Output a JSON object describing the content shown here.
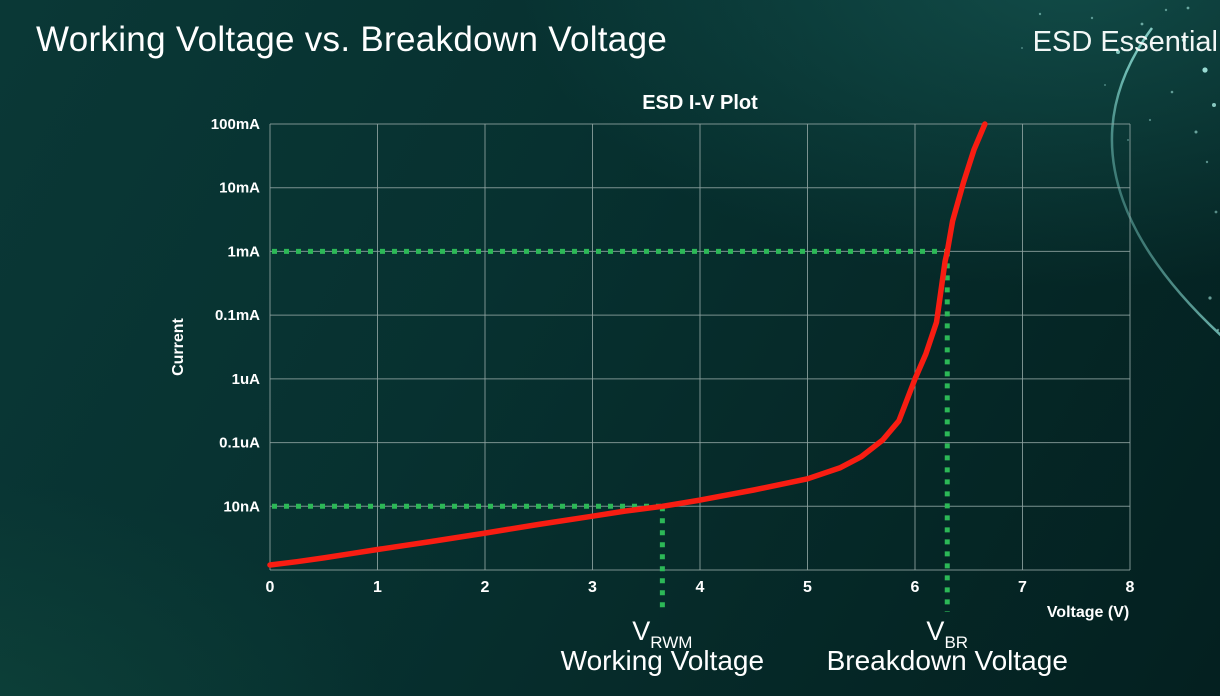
{
  "slide": {
    "title": "Working Voltage vs. Breakdown Voltage",
    "brand": "ESD Essential"
  },
  "colors": {
    "curve_red": "#f81d12",
    "marker_green": "#2cb857",
    "grid_gray": "#8fa3a1",
    "text_white": "#ffffff"
  },
  "chart_data": {
    "type": "line",
    "title": "ESD I-V Plot",
    "xlabel": "Voltage (V)",
    "ylabel": "Current",
    "xlim": [
      0,
      8
    ],
    "x_ticks": [
      0,
      1,
      2,
      3,
      4,
      5,
      6,
      7,
      8
    ],
    "y_scale": "log",
    "grid": true,
    "y_gridlines": [
      {
        "label": "100mA",
        "value": 0.1
      },
      {
        "label": "10mA",
        "value": 0.01
      },
      {
        "label": "1mA",
        "value": 0.001
      },
      {
        "label": "0.1mA",
        "value": 0.0001
      },
      {
        "label": "1uA",
        "value": 1e-06
      },
      {
        "label": "0.1uA",
        "value": 1e-07
      },
      {
        "label": "10nA",
        "value": 1e-08
      },
      {
        "label": "",
        "value": 1e-09
      }
    ],
    "series": [
      {
        "name": "ESD diode I-V curve",
        "color": "#f81d12",
        "points": [
          [
            0,
            1.2e-09
          ],
          [
            0.25,
            1.35e-09
          ],
          [
            0.5,
            1.55e-09
          ],
          [
            0.75,
            1.8e-09
          ],
          [
            1,
            2.1e-09
          ],
          [
            1.5,
            2.8e-09
          ],
          [
            2,
            3.8e-09
          ],
          [
            2.5,
            5.2e-09
          ],
          [
            3,
            7e-09
          ],
          [
            3.3,
            8.4e-09
          ],
          [
            3.65,
            1e-08
          ],
          [
            4,
            1.25e-08
          ],
          [
            4.5,
            1.8e-08
          ],
          [
            5,
            2.7e-08
          ],
          [
            5.3,
            4e-08
          ],
          [
            5.5,
            6e-08
          ],
          [
            5.7,
            1.1e-07
          ],
          [
            5.85,
            2.2e-07
          ],
          [
            6,
            1e-06
          ],
          [
            6.1,
            6e-06
          ],
          [
            6.2,
            6e-05
          ],
          [
            6.28,
            0.0007
          ],
          [
            6.3,
            0.001
          ],
          [
            6.35,
            0.003
          ],
          [
            6.45,
            0.012
          ],
          [
            6.55,
            0.04
          ],
          [
            6.65,
            0.1
          ]
        ]
      }
    ],
    "markers": [
      {
        "symbol": "V",
        "subscript": "RWM",
        "caption": "Working Voltage",
        "voltage": 3.65,
        "current": 1e-08,
        "current_label": "10nA",
        "color": "#2cb857"
      },
      {
        "symbol": "V",
        "subscript": "BR",
        "caption": "Breakdown Voltage",
        "voltage": 6.3,
        "current": 0.001,
        "current_label": "1mA",
        "color": "#2cb857"
      }
    ]
  }
}
